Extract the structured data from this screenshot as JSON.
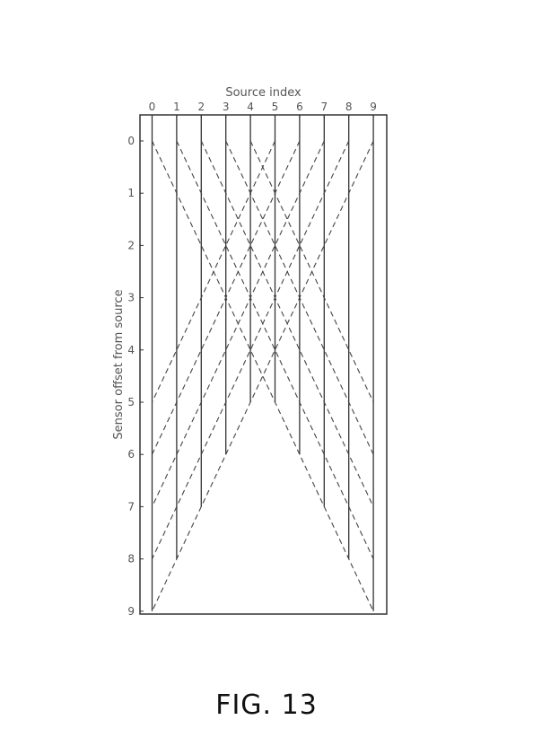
{
  "chart_data": {
    "type": "line",
    "xlabel": "Source index",
    "ylabel": "Sensor offset from source",
    "x_ticks": [
      "0",
      "1",
      "2",
      "3",
      "4",
      "5",
      "6",
      "7",
      "8",
      "9"
    ],
    "y_ticks": [
      "0",
      "1",
      "2",
      "3",
      "4",
      "5",
      "6",
      "7",
      "8",
      "9"
    ],
    "xlim": [
      -0.5,
      9.5
    ],
    "ylim": [
      9,
      0
    ],
    "x_axis_position": "top",
    "y_inverted": true,
    "grid": false,
    "series": [
      {
        "style": "solid",
        "x": [
          0,
          1,
          2,
          3,
          4,
          5,
          6,
          7,
          8,
          9
        ],
        "max_offset": [
          9,
          8,
          7,
          6,
          5,
          5,
          6,
          7,
          8,
          9
        ]
      },
      {
        "style": "dashed",
        "segments": [
          {
            "x": [
              0,
              9
            ],
            "y": [
              0,
              9
            ]
          },
          {
            "x": [
              1,
              9
            ],
            "y": [
              0,
              8
            ]
          },
          {
            "x": [
              2,
              9
            ],
            "y": [
              0,
              7
            ]
          },
          {
            "x": [
              3,
              9
            ],
            "y": [
              0,
              6
            ]
          },
          {
            "x": [
              4,
              9
            ],
            "y": [
              0,
              5
            ]
          },
          {
            "x": [
              5,
              0
            ],
            "y": [
              0,
              5
            ]
          },
          {
            "x": [
              6,
              0
            ],
            "y": [
              0,
              6
            ]
          },
          {
            "x": [
              7,
              0
            ],
            "y": [
              0,
              7
            ]
          },
          {
            "x": [
              8,
              0
            ],
            "y": [
              0,
              8
            ]
          },
          {
            "x": [
              9,
              0
            ],
            "y": [
              0,
              9
            ]
          }
        ]
      }
    ]
  },
  "figure": {
    "caption": "FIG. 13"
  }
}
